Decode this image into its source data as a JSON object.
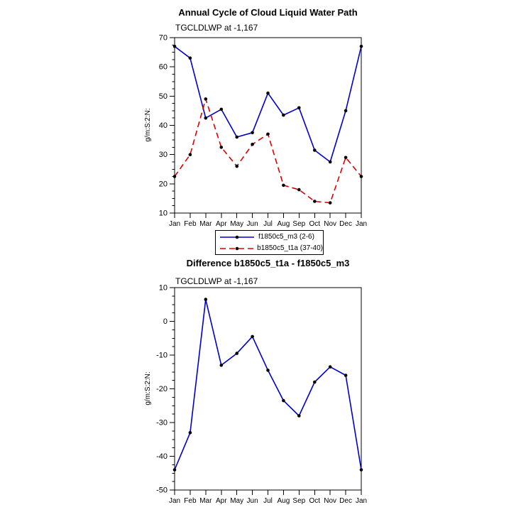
{
  "window": {
    "background": "#ffffff"
  },
  "chart1": {
    "title": "Annual Cycle of Cloud Liquid Water Path",
    "subtitle": "TGCLDLWP at -1,167",
    "ylabel": "g/m:S:2:N:",
    "chart_data": {
      "type": "line",
      "categories": [
        "Jan",
        "Feb",
        "Mar",
        "Apr",
        "May",
        "Jun",
        "Jul",
        "Aug",
        "Sep",
        "Oct",
        "Nov",
        "Dec",
        "Jan"
      ],
      "xlabel": "",
      "ylim": [
        10,
        70
      ],
      "ytick_major": 10,
      "ytick_minor": 2.5,
      "grid": false,
      "legend_position": "below",
      "series": [
        {
          "name": "f1850c5_m3 (2-6)",
          "color": "#0000cc",
          "style": "solid",
          "marker": "dot",
          "marker_color": "#000000",
          "values": [
            67,
            63,
            42.5,
            45.5,
            36,
            37.5,
            51,
            43.5,
            46,
            31.5,
            27.5,
            45,
            67
          ]
        },
        {
          "name": "b1850c5_t1a (37-40)",
          "color": "#dd0000",
          "style": "dashed",
          "marker": "dot",
          "marker_color": "#000000",
          "values": [
            22.5,
            30,
            49,
            32.5,
            26,
            33.5,
            37,
            19.5,
            18,
            14,
            13.5,
            29,
            22.5
          ]
        }
      ]
    }
  },
  "chart2": {
    "title": "Difference b1850c5_t1a - f1850c5_m3",
    "subtitle": "TGCLDLWP at -1,167",
    "ylabel": "g/m:S:2:N:",
    "chart_data": {
      "type": "line",
      "categories": [
        "Jan",
        "Feb",
        "Mar",
        "Apr",
        "May",
        "Jun",
        "Jul",
        "Aug",
        "Sep",
        "Oct",
        "Nov",
        "Dec",
        "Jan"
      ],
      "xlabel": "",
      "ylim": [
        -50,
        10
      ],
      "ytick_major": 10,
      "ytick_minor": 2.5,
      "grid": false,
      "legend_position": "none",
      "series": [
        {
          "name": "b1850c5_t1a - f1850c5_m3",
          "color": "#0000cc",
          "style": "solid",
          "marker": "dot",
          "marker_color": "#000000",
          "values": [
            -44,
            -33,
            6.5,
            -13,
            -9.5,
            -4.5,
            -14.5,
            -23.5,
            -28,
            -18,
            -13.5,
            -16,
            -44
          ]
        }
      ]
    }
  }
}
